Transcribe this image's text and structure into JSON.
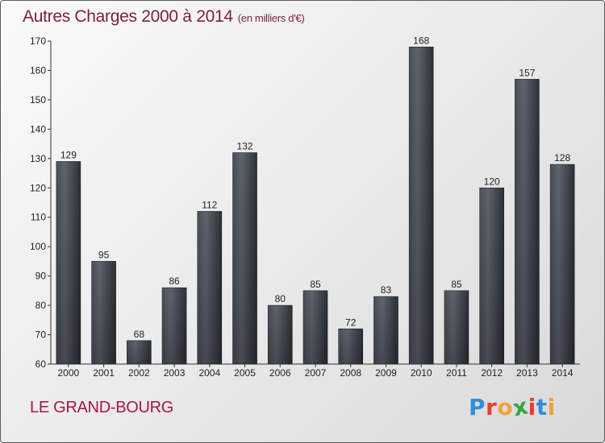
{
  "title": "Autres Charges 2000 à 2014",
  "subtitle": "(en milliers d'€)",
  "location": "LE GRAND-BOURG",
  "logo": {
    "letters": [
      "P",
      "r",
      "o",
      "x",
      "i",
      "t",
      "i"
    ],
    "colors": [
      "#2f8fd6",
      "#e83c2f",
      "#f2a23a",
      "#3aa543",
      "#e83c2f",
      "#2f8fd6",
      "#f2a23a"
    ]
  },
  "chart_data": {
    "type": "bar",
    "categories": [
      "2000",
      "2001",
      "2002",
      "2003",
      "2004",
      "2005",
      "2006",
      "2007",
      "2008",
      "2009",
      "2010",
      "2011",
      "2012",
      "2013",
      "2014"
    ],
    "values": [
      129,
      95,
      68,
      86,
      112,
      132,
      80,
      85,
      72,
      83,
      168,
      85,
      120,
      157,
      128
    ],
    "title": "Autres Charges 2000 à 2014",
    "xlabel": "",
    "ylabel": "",
    "ylim": [
      60,
      170
    ],
    "yticks": [
      60,
      70,
      80,
      90,
      100,
      110,
      120,
      130,
      140,
      150,
      160,
      170
    ],
    "grid": false,
    "bar_color": "#3a3f46"
  }
}
